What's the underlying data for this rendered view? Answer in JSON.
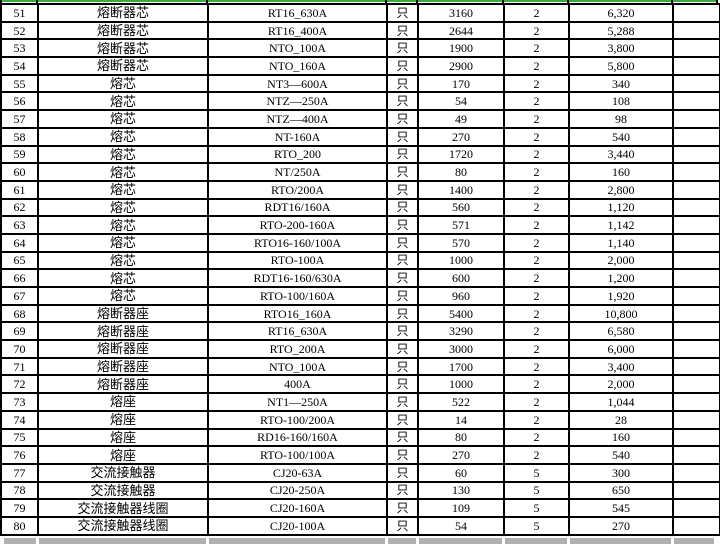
{
  "table": {
    "unit_label": "只",
    "rows": [
      [
        "51",
        "熔断器芯",
        "RT16_630A",
        "只",
        "3160",
        "2",
        "6,320",
        ""
      ],
      [
        "52",
        "熔断器芯",
        "RT16_400A",
        "只",
        "2644",
        "2",
        "5,288",
        ""
      ],
      [
        "53",
        "熔断器芯",
        "NTO_100A",
        "只",
        "1900",
        "2",
        "3,800",
        ""
      ],
      [
        "54",
        "熔断器芯",
        "NTO_160A",
        "只",
        "2900",
        "2",
        "5,800",
        ""
      ],
      [
        "55",
        "熔芯",
        "NT3—600A",
        "只",
        "170",
        "2",
        "340",
        ""
      ],
      [
        "56",
        "熔芯",
        "NTZ—250A",
        "只",
        "54",
        "2",
        "108",
        ""
      ],
      [
        "57",
        "熔芯",
        "NTZ—400A",
        "只",
        "49",
        "2",
        "98",
        ""
      ],
      [
        "58",
        "熔芯",
        "NT-160A",
        "只",
        "270",
        "2",
        "540",
        ""
      ],
      [
        "59",
        "熔芯",
        "RTO_200",
        "只",
        "1720",
        "2",
        "3,440",
        ""
      ],
      [
        "60",
        "熔芯",
        "NT/250A",
        "只",
        "80",
        "2",
        "160",
        ""
      ],
      [
        "61",
        "熔芯",
        "RTO/200A",
        "只",
        "1400",
        "2",
        "2,800",
        ""
      ],
      [
        "62",
        "熔芯",
        "RDT16/160A",
        "只",
        "560",
        "2",
        "1,120",
        ""
      ],
      [
        "63",
        "熔芯",
        "RTO-200-160A",
        "只",
        "571",
        "2",
        "1,142",
        ""
      ],
      [
        "64",
        "熔芯",
        "RTO16-160/100A",
        "只",
        "570",
        "2",
        "1,140",
        ""
      ],
      [
        "65",
        "熔芯",
        "RTO-100A",
        "只",
        "1000",
        "2",
        "2,000",
        ""
      ],
      [
        "66",
        "熔芯",
        "RDT16-160/630A",
        "只",
        "600",
        "2",
        "1,200",
        ""
      ],
      [
        "67",
        "熔芯",
        "RTO-100/160A",
        "只",
        "960",
        "2",
        "1,920",
        ""
      ],
      [
        "68",
        "熔断器座",
        "RTO16_160A",
        "只",
        "5400",
        "2",
        "10,800",
        ""
      ],
      [
        "69",
        "熔断器座",
        "RT16_630A",
        "只",
        "3290",
        "2",
        "6,580",
        ""
      ],
      [
        "70",
        "熔断器座",
        "RTO_200A",
        "只",
        "3000",
        "2",
        "6,000",
        ""
      ],
      [
        "71",
        "熔断器座",
        "NTO_100A",
        "只",
        "1700",
        "2",
        "3,400",
        ""
      ],
      [
        "72",
        "熔断器座",
        "400A",
        "只",
        "1000",
        "2",
        "2,000",
        ""
      ],
      [
        "73",
        "熔座",
        "NT1—250A",
        "只",
        "522",
        "2",
        "1,044",
        ""
      ],
      [
        "74",
        "熔座",
        "RTO-100/200A",
        "只",
        "14",
        "2",
        "28",
        ""
      ],
      [
        "75",
        "熔座",
        "RD16-160/160A",
        "只",
        "80",
        "2",
        "160",
        ""
      ],
      [
        "76",
        "熔座",
        "RTO-100/100A",
        "只",
        "270",
        "2",
        "540",
        ""
      ],
      [
        "77",
        "交流接触器",
        "CJ20-63A",
        "只",
        "60",
        "5",
        "300",
        ""
      ],
      [
        "78",
        "交流接触器",
        "CJ20-250A",
        "只",
        "130",
        "5",
        "650",
        ""
      ],
      [
        "79",
        "交流接触器线圈",
        "CJ20-160A",
        "只",
        "109",
        "5",
        "545",
        ""
      ],
      [
        "80",
        "交流接触器线圈",
        "CJ20-100A",
        "只",
        "54",
        "5",
        "270",
        ""
      ]
    ]
  },
  "colors": {
    "gridline_green": "#4ba04b",
    "partial_row_gray": "#b0b0b0",
    "border_black": "#000000",
    "background": "#ffffff"
  }
}
